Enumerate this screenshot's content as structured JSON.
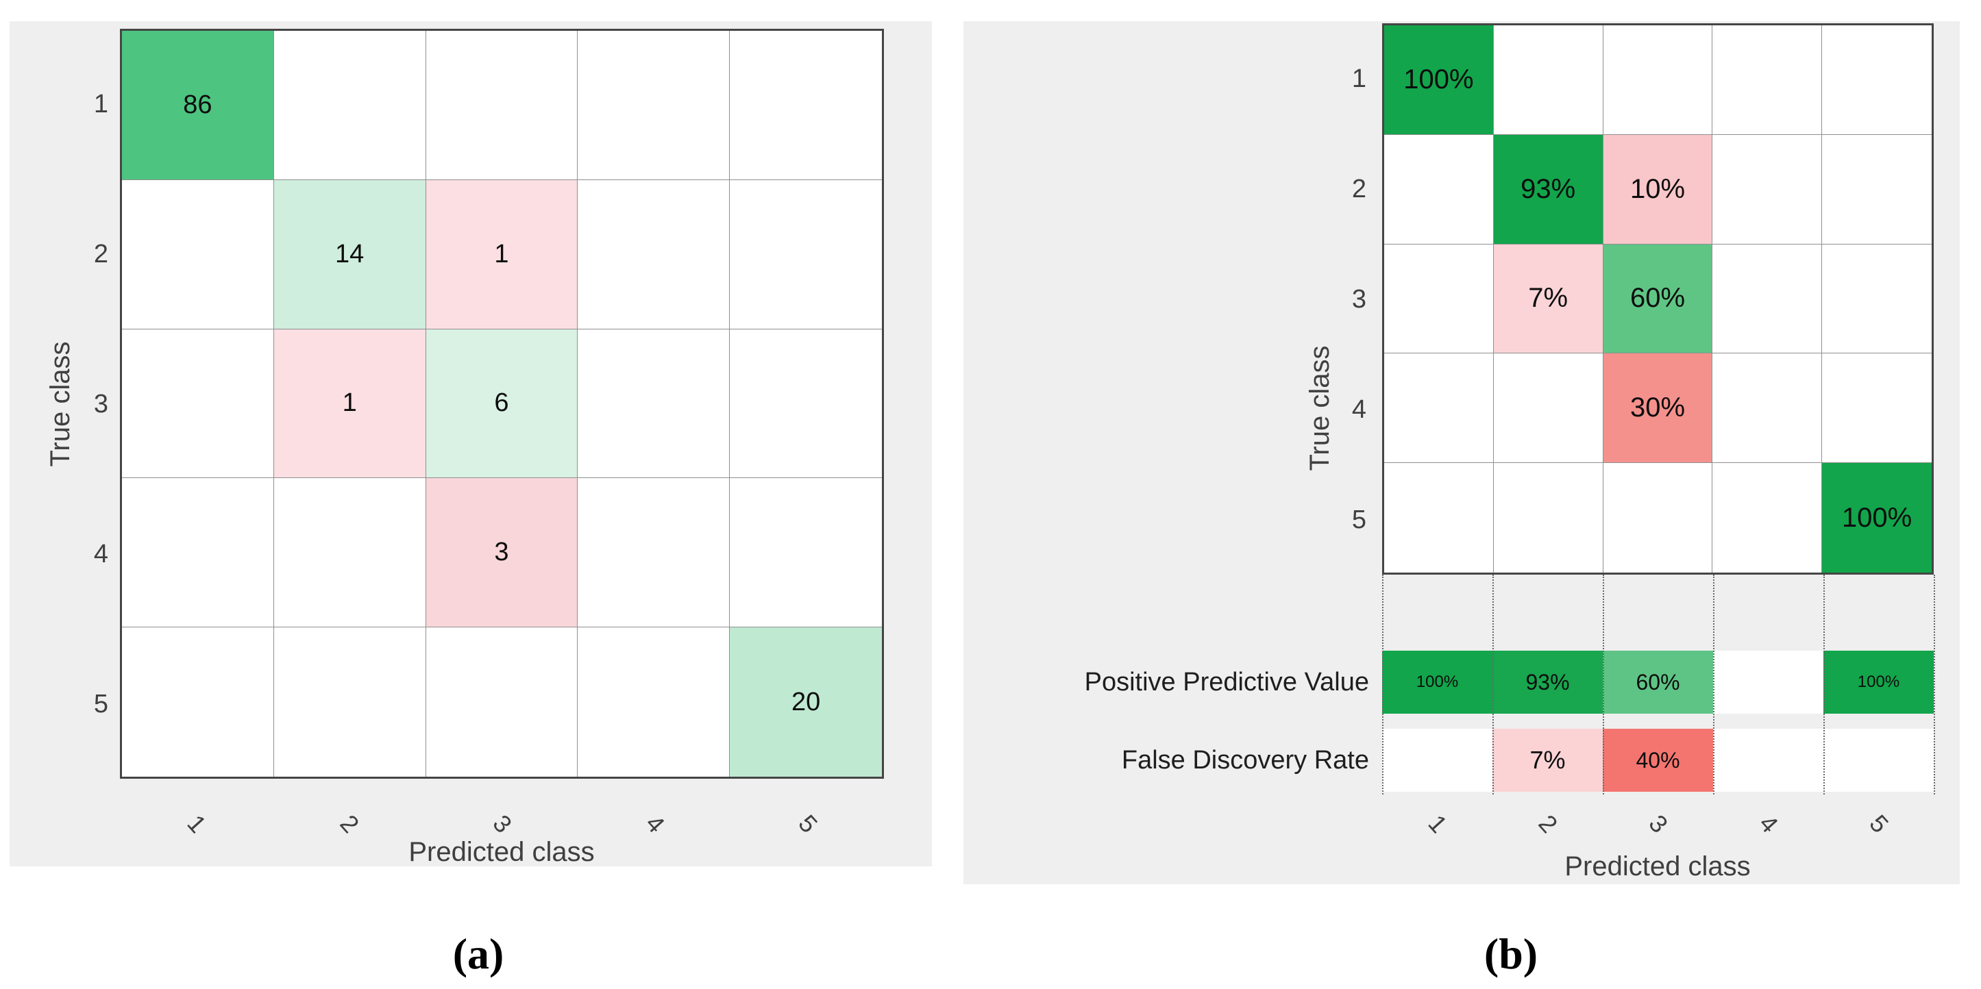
{
  "panels": {
    "a": {
      "caption": "(a)",
      "xlabel": "Predicted class",
      "ylabel": "True class",
      "x_ticks": [
        "1",
        "2",
        "3",
        "4",
        "5"
      ],
      "y_ticks": [
        "1",
        "2",
        "3",
        "4",
        "5"
      ],
      "matrix": [
        [
          {
            "label": "86",
            "color": "#4dc480"
          },
          null,
          null,
          null,
          null
        ],
        [
          null,
          {
            "label": "14",
            "color": "#cfeedd"
          },
          {
            "label": "1",
            "color": "#fbdfe2"
          },
          null,
          null
        ],
        [
          null,
          {
            "label": "1",
            "color": "#fbdfe2"
          },
          {
            "label": "6",
            "color": "#daf2e4"
          },
          null,
          null
        ],
        [
          null,
          null,
          {
            "label": "3",
            "color": "#f9d6d9"
          },
          null,
          null
        ],
        [
          null,
          null,
          null,
          null,
          {
            "label": "20",
            "color": "#c0e9d1"
          }
        ]
      ]
    },
    "b": {
      "caption": "(b)",
      "xlabel": "Predicted class",
      "ylabel": "True class",
      "x_ticks": [
        "1",
        "2",
        "3",
        "4",
        "5"
      ],
      "y_ticks": [
        "1",
        "2",
        "3",
        "4",
        "5"
      ],
      "matrix": [
        [
          {
            "label": "100%",
            "color": "#12a54b"
          },
          null,
          null,
          null,
          null
        ],
        [
          null,
          {
            "label": "93%",
            "color": "#12a54b"
          },
          {
            "label": "10%",
            "color": "#f9c7ca"
          },
          null,
          null
        ],
        [
          null,
          {
            "label": "7%",
            "color": "#fad4d6"
          },
          {
            "label": "60%",
            "color": "#5fc585"
          },
          null,
          null
        ],
        [
          null,
          null,
          {
            "label": "30%",
            "color": "#f5918d"
          },
          null,
          null
        ],
        [
          null,
          null,
          null,
          null,
          {
            "label": "100%",
            "color": "#12a54b"
          }
        ]
      ],
      "summary_rows": [
        {
          "label": "Positive Predictive Value",
          "cells": [
            {
              "label": "100%",
              "color": "#12a54b"
            },
            {
              "label": "93%",
              "color": "#18a64f"
            },
            {
              "label": "60%",
              "color": "#5ec485"
            },
            {
              "label": "",
              "color": "#ffffff"
            },
            {
              "label": "100%",
              "color": "#12a54b"
            }
          ]
        },
        {
          "label": "False Discovery Rate",
          "cells": [
            {
              "label": "",
              "color": "#ffffff"
            },
            {
              "label": "7%",
              "color": "#fbd3d5"
            },
            {
              "label": "40%",
              "color": "#f4756f"
            },
            {
              "label": "",
              "color": "#ffffff"
            },
            {
              "label": "",
              "color": "#ffffff"
            }
          ]
        }
      ]
    }
  },
  "colors": {
    "panel_background": "#efeff0",
    "grid_line": "#8f8f8f",
    "grid_border": "#454545",
    "dotted_line": "#686868",
    "diagonal_green_strong": "#12a54b",
    "diagonal_green_medium": "#5fc585",
    "offdiagonal_pink_light": "#f9c7ca",
    "offdiagonal_red_medium": "#f4756f"
  },
  "chart_data": [
    {
      "type": "heatmap",
      "panel": "a",
      "title": "(a)",
      "xlabel": "Predicted class",
      "ylabel": "True class",
      "x_categories": [
        "1",
        "2",
        "3",
        "4",
        "5"
      ],
      "y_categories": [
        "1",
        "2",
        "3",
        "4",
        "5"
      ],
      "values": [
        [
          86,
          null,
          null,
          null,
          null
        ],
        [
          null,
          14,
          1,
          null,
          null
        ],
        [
          null,
          1,
          6,
          null,
          null
        ],
        [
          null,
          null,
          3,
          null,
          null
        ],
        [
          null,
          null,
          null,
          null,
          20
        ]
      ],
      "legend_position": "none",
      "grid": true,
      "notes": "Confusion matrix of counts; diagonal cells green, off-diagonal cells pink"
    },
    {
      "type": "heatmap",
      "panel": "b",
      "title": "(b)",
      "xlabel": "Predicted class",
      "ylabel": "True class",
      "x_categories": [
        "1",
        "2",
        "3",
        "4",
        "5"
      ],
      "y_categories": [
        "1",
        "2",
        "3",
        "4",
        "5"
      ],
      "values_percent": [
        [
          100,
          null,
          null,
          null,
          null
        ],
        [
          null,
          93,
          10,
          null,
          null
        ],
        [
          null,
          7,
          60,
          null,
          null
        ],
        [
          null,
          null,
          30,
          null,
          null
        ],
        [
          null,
          null,
          null,
          null,
          100
        ]
      ],
      "column_summary": {
        "positive_predictive_value_percent": [
          100,
          93,
          60,
          null,
          100
        ],
        "false_discovery_rate_percent": [
          null,
          7,
          40,
          null,
          null
        ]
      },
      "legend_position": "none",
      "grid": true,
      "notes": "Row-normalized confusion matrix with column summary rows separated by dotted lines"
    }
  ]
}
